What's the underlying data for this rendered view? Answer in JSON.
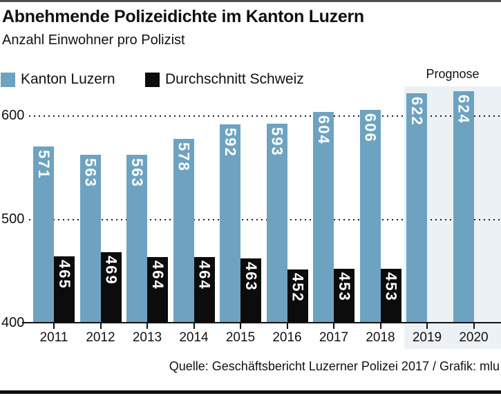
{
  "header": {
    "title": "Abnehmende Polizeidichte im Kanton Luzern",
    "subtitle": "Anzahl Einwohner pro Polizist"
  },
  "legend": {
    "items": [
      {
        "label": "Kanton Luzern",
        "color": "#6da3c0"
      },
      {
        "label": "Durchschnitt Schweiz",
        "color": "#0c0c0c"
      }
    ]
  },
  "forecast": {
    "label": "Prognose",
    "years": [
      "2019",
      "2020"
    ]
  },
  "footer": {
    "source": "Quelle: Geschäftsbericht Luzerner Polizei 2017 / Grafik: mlu"
  },
  "chart_data": {
    "type": "bar",
    "title": "Abnehmende Polizeidichte im Kanton Luzern",
    "subtitle": "Anzahl Einwohner pro Polizist",
    "categories": [
      "2011",
      "2012",
      "2013",
      "2014",
      "2015",
      "2016",
      "2017",
      "2018",
      "2019",
      "2020"
    ],
    "series": [
      {
        "name": "Kanton Luzern",
        "color": "#6da3c0",
        "values": [
          571,
          563,
          563,
          578,
          592,
          593,
          604,
          606,
          622,
          624
        ]
      },
      {
        "name": "Durchschnitt Schweiz",
        "color": "#0c0c0c",
        "values": [
          465,
          469,
          464,
          464,
          463,
          452,
          453,
          453,
          null,
          null
        ]
      }
    ],
    "ylim": [
      400,
      640
    ],
    "yticks": [
      400,
      500,
      600
    ],
    "grid": "horizontal-dotted-at-500-and-600",
    "value_labels": "rotated-90-clockwise-inside-bar-top",
    "legend_position": "top-left",
    "annotation": {
      "text": "Prognose",
      "applies_to": [
        "2019",
        "2020"
      ]
    }
  },
  "colors": {
    "bar_luzern": "#6da3c0",
    "bar_schweiz": "#0c0c0c",
    "forecast_background": "#ecf1f5",
    "text": "#111111",
    "top_rule": "#4d4d4d",
    "bottom_rule": "#0c0c0c"
  }
}
